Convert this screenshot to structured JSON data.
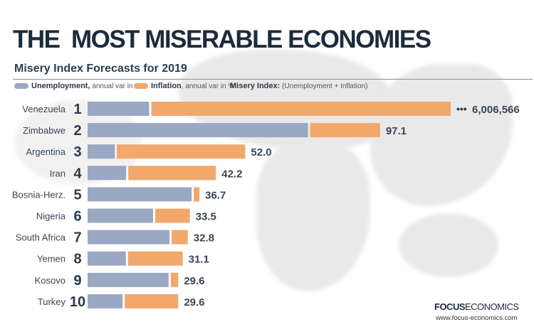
{
  "title": "THE  MOST MISERABLE ECONOMIES",
  "subtitle": "Misery Index Forecasts for 2019",
  "legend": {
    "unemployment_label": "Unemployment,",
    "unemployment_note": "annual var in %",
    "inflation_label": "Inflation",
    "inflation_note": ", annual var in %",
    "misery_label": "Misery Index:",
    "misery_note": "(Unemployment + Inflation)"
  },
  "logo": {
    "bold": "FOCUS",
    "rest": "ECONOMICS",
    "url": "www.focus-economics.com"
  },
  "colors": {
    "unemployment": "#9aa8c3",
    "inflation": "#f2a86b",
    "text": "#2b3a4a"
  },
  "chart_data": {
    "type": "bar",
    "orientation": "horizontal",
    "stacked": true,
    "title": "Misery Index Forecasts for 2019",
    "categories": [
      "Venezuela",
      "Zimbabwe",
      "Argentina",
      "Iran",
      "Bosnia-Herz.",
      "Nigeria",
      "South Africa",
      "Yemen",
      "Kosovo",
      "Turkey"
    ],
    "ranks": [
      "1",
      "2",
      "3",
      "4",
      "5",
      "6",
      "7",
      "8",
      "9",
      "10"
    ],
    "series": [
      {
        "name": "Unemployment",
        "values": [
          20.6,
          73.7,
          9.1,
          12.9,
          34.8,
          21.9,
          27.4,
          12.8,
          27.1,
          11.7
        ]
      },
      {
        "name": "Inflation",
        "values": [
          6006545.4,
          23.4,
          42.9,
          29.3,
          1.9,
          11.6,
          5.4,
          18.3,
          2.5,
          17.9
        ]
      }
    ],
    "totals": [
      "6,006,566",
      "97.1",
      "52.0",
      "42.2",
      "36.7",
      "33.5",
      "32.8",
      "31.1",
      "29.6",
      "29.6"
    ],
    "axis_break": "•••",
    "grid": false,
    "legend_position": "top"
  }
}
